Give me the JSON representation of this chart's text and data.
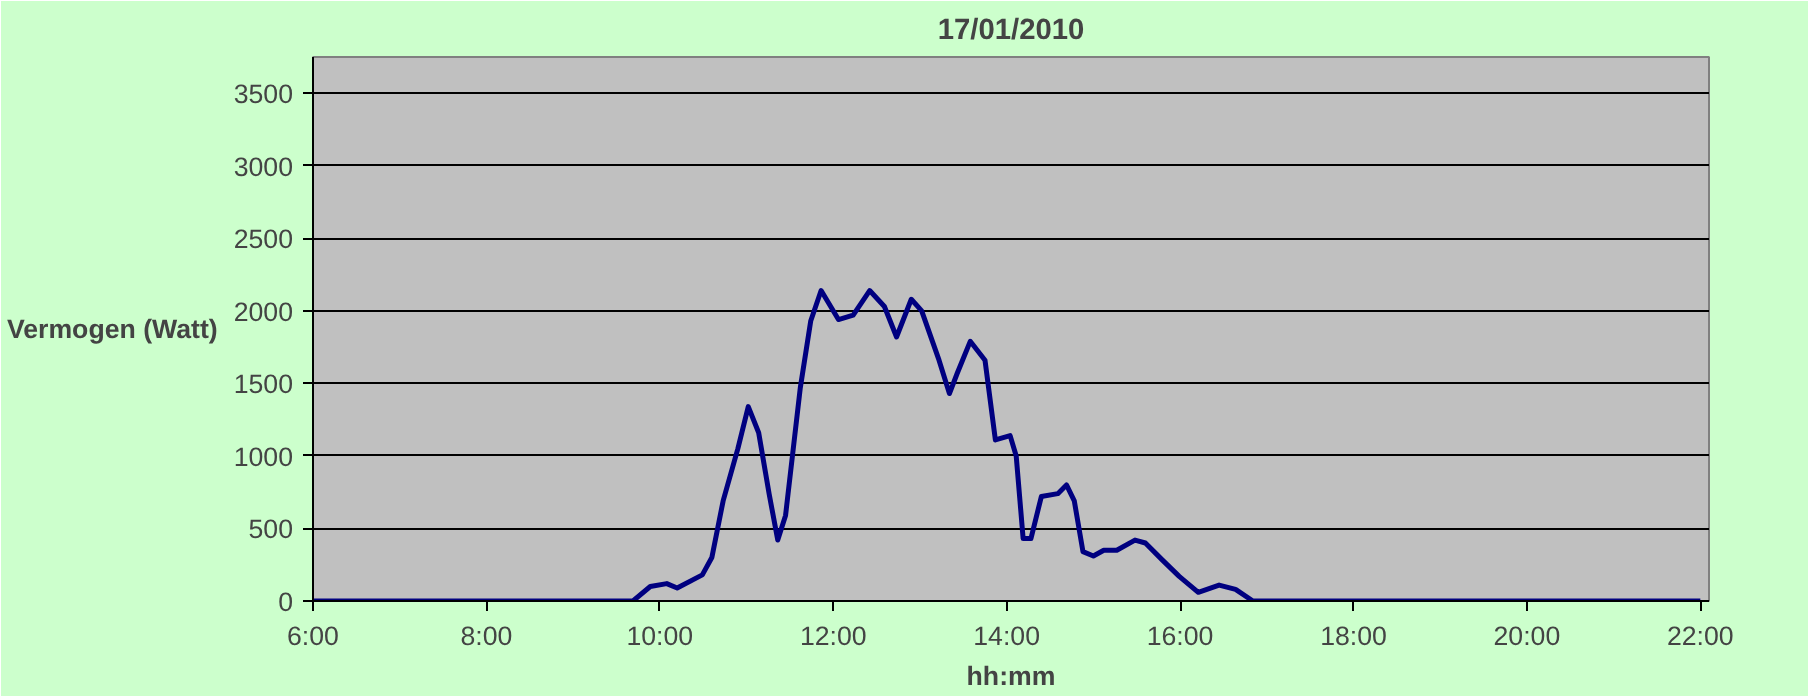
{
  "chart_data": {
    "type": "line",
    "title": "17/01/2010",
    "xlabel": "hh:mm",
    "ylabel": "Vermogen (Watt)",
    "x": [
      6,
      9.69,
      9.89,
      10.08,
      10.2,
      10.49,
      10.6,
      10.73,
      10.9,
      11.02,
      11.14,
      11.26,
      11.36,
      11.45,
      11.62,
      11.74,
      11.86,
      12.06,
      12.23,
      12.42,
      12.59,
      12.73,
      12.9,
      13.02,
      13.22,
      13.34,
      13.43,
      13.58,
      13.75,
      13.87,
      14.04,
      14.11,
      14.19,
      14.28,
      14.4,
      14.59,
      14.69,
      14.78,
      14.88,
      15.0,
      15.12,
      15.27,
      15.48,
      15.6,
      15.8,
      15.99,
      16.21,
      16.45,
      16.64,
      16.84,
      22
    ],
    "series": [
      {
        "color": "#000080",
        "values": [
          0,
          0,
          100,
          120,
          90,
          180,
          300,
          690,
          1050,
          1340,
          1160,
          740,
          420,
          590,
          1470,
          1930,
          2140,
          1940,
          1970,
          2140,
          2030,
          1820,
          2080,
          2000,
          1660,
          1430,
          1570,
          1790,
          1660,
          1110,
          1140,
          1000,
          430,
          430,
          720,
          740,
          800,
          690,
          340,
          310,
          350,
          350,
          420,
          400,
          280,
          170,
          60,
          110,
          80,
          0,
          0
        ]
      }
    ],
    "xlim": [
      6,
      22.1
    ],
    "ylim": [
      0,
      3750
    ],
    "xticks": [
      {
        "value": 6,
        "label": "6:00"
      },
      {
        "value": 8,
        "label": "8:00"
      },
      {
        "value": 10,
        "label": "10:00"
      },
      {
        "value": 12,
        "label": "12:00"
      },
      {
        "value": 14,
        "label": "14:00"
      },
      {
        "value": 16,
        "label": "16:00"
      },
      {
        "value": 18,
        "label": "18:00"
      },
      {
        "value": 20,
        "label": "20:00"
      },
      {
        "value": 22,
        "label": "22:00"
      }
    ],
    "yticks": [
      0,
      500,
      1000,
      1500,
      2000,
      2500,
      3000,
      3500
    ],
    "grid": "y",
    "marker": "none",
    "line_style": "solid"
  }
}
